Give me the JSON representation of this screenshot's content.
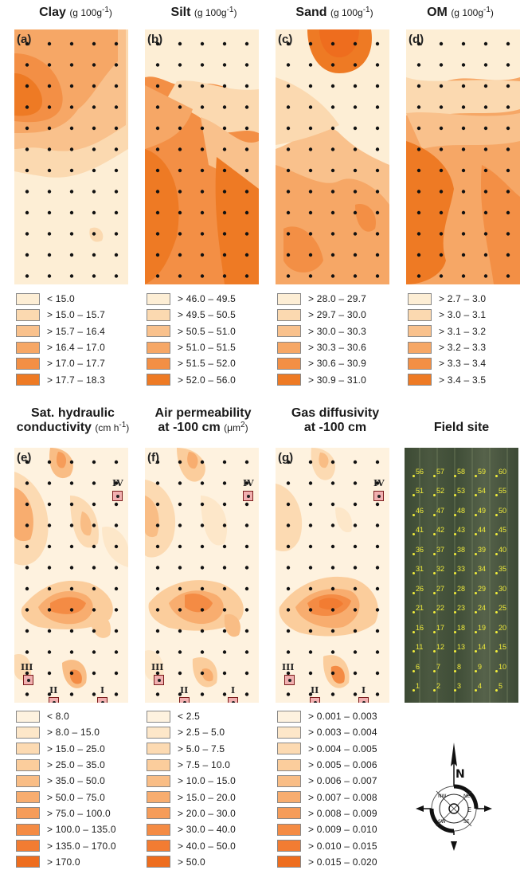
{
  "panels_top": [
    {
      "id": "a",
      "letter": "(a)",
      "title": "Clay",
      "unit": "(g 100g",
      "legend": [
        "< 15.0",
        "> 15.0 – 15.7",
        "> 15.7 – 16.4",
        "> 16.4 – 17.0",
        "> 17.0 – 17.7",
        "> 17.7 – 18.3"
      ]
    },
    {
      "id": "b",
      "letter": "(b)",
      "title": "Silt",
      "unit": "(g 100g",
      "legend": [
        "> 46.0 – 49.5",
        "> 49.5 – 50.5",
        "> 50.5 – 51.0",
        "> 51.0 – 51.5",
        "> 51.5 – 52.0",
        "> 52.0 – 56.0"
      ]
    },
    {
      "id": "c",
      "letter": "(c)",
      "title": "Sand",
      "unit": "(g 100g",
      "legend": [
        "> 28.0 – 29.7",
        "> 29.7 – 30.0",
        "> 30.0 – 30.3",
        "> 30.3 – 30.6",
        "> 30.6 – 30.9",
        "> 30.9 – 31.0"
      ]
    },
    {
      "id": "d",
      "letter": "(d)",
      "title": "OM",
      "unit": "(g 100g",
      "legend": [
        "> 2.7 – 3.0",
        "> 3.0 – 3.1",
        "> 3.1 – 3.2",
        "> 3.2 – 3.3",
        "> 3.3 – 3.4",
        "> 3.4 – 3.5"
      ]
    }
  ],
  "panels_bottom": [
    {
      "id": "e",
      "letter": "(e)",
      "title_line1": "Sat. hydraulic",
      "title_line2": "conductivity",
      "unit": "(cm h",
      "legend": [
        "< 8.0",
        "> 8.0 – 15.0",
        "> 15.0 – 25.0",
        "> 25.0 – 35.0",
        "> 35.0 – 50.0",
        "> 50.0 – 75.0",
        "> 75.0 – 100.0",
        "> 100.0 – 135.0",
        "> 135.0 – 170.0",
        "> 170.0"
      ]
    },
    {
      "id": "f",
      "letter": "(f)",
      "title_line1": "Air permeability",
      "title_line2": "at -100 cm",
      "unit": "(μm",
      "legend": [
        "< 2.5",
        "> 2.5 – 5.0",
        "> 5.0 – 7.5",
        "> 7.5 – 10.0",
        "> 10.0 – 15.0",
        "> 15.0 – 20.0",
        "> 20.0 – 30.0",
        "> 30.0 – 40.0",
        "> 40.0 – 50.0",
        "> 50.0"
      ]
    },
    {
      "id": "g",
      "letter": "(g)",
      "title_line1": "Gas diffusivity",
      "title_line2": "at -100 cm",
      "unit": "",
      "legend": [
        "> 0.001 – 0.003",
        "> 0.003 – 0.004",
        "> 0.004 – 0.005",
        "> 0.005 – 0.006",
        "> 0.006 – 0.007",
        "> 0.007 – 0.008",
        "> 0.008 – 0.009",
        "> 0.009 – 0.010",
        "> 0.010 – 0.015",
        "> 0.015 – 0.020"
      ]
    }
  ],
  "field_site": {
    "title": "Field site",
    "plots": [
      "1",
      "2",
      "3",
      "4",
      "5",
      "6",
      "7",
      "8",
      "9",
      "10",
      "11",
      "12",
      "13",
      "14",
      "15",
      "16",
      "17",
      "18",
      "19",
      "20",
      "21",
      "22",
      "23",
      "24",
      "25",
      "26",
      "27",
      "28",
      "29",
      "30",
      "31",
      "32",
      "33",
      "34",
      "35",
      "36",
      "37",
      "38",
      "39",
      "40",
      "41",
      "42",
      "43",
      "44",
      "45",
      "46",
      "47",
      "48",
      "49",
      "50",
      "51",
      "52",
      "53",
      "54",
      "55",
      "56",
      "57",
      "58",
      "59",
      "60"
    ]
  },
  "stations": [
    "I",
    "II",
    "III",
    "IV"
  ],
  "compass": {
    "north": "N",
    "east": "E",
    "labels": [
      "NE",
      "NW",
      "SE",
      "SW"
    ]
  },
  "colors": {
    "scale6": [
      "#fdeed5",
      "#fbd9b0",
      "#f9c18c",
      "#f6a766",
      "#f38f45",
      "#ee7a24"
    ],
    "scale10": [
      "#fef2df",
      "#fde7c9",
      "#fcdab2",
      "#fbcd9c",
      "#f9bd85",
      "#f8ad6f",
      "#f69c59",
      "#f48b44",
      "#f27c32",
      "#ee6d1e"
    ]
  }
}
